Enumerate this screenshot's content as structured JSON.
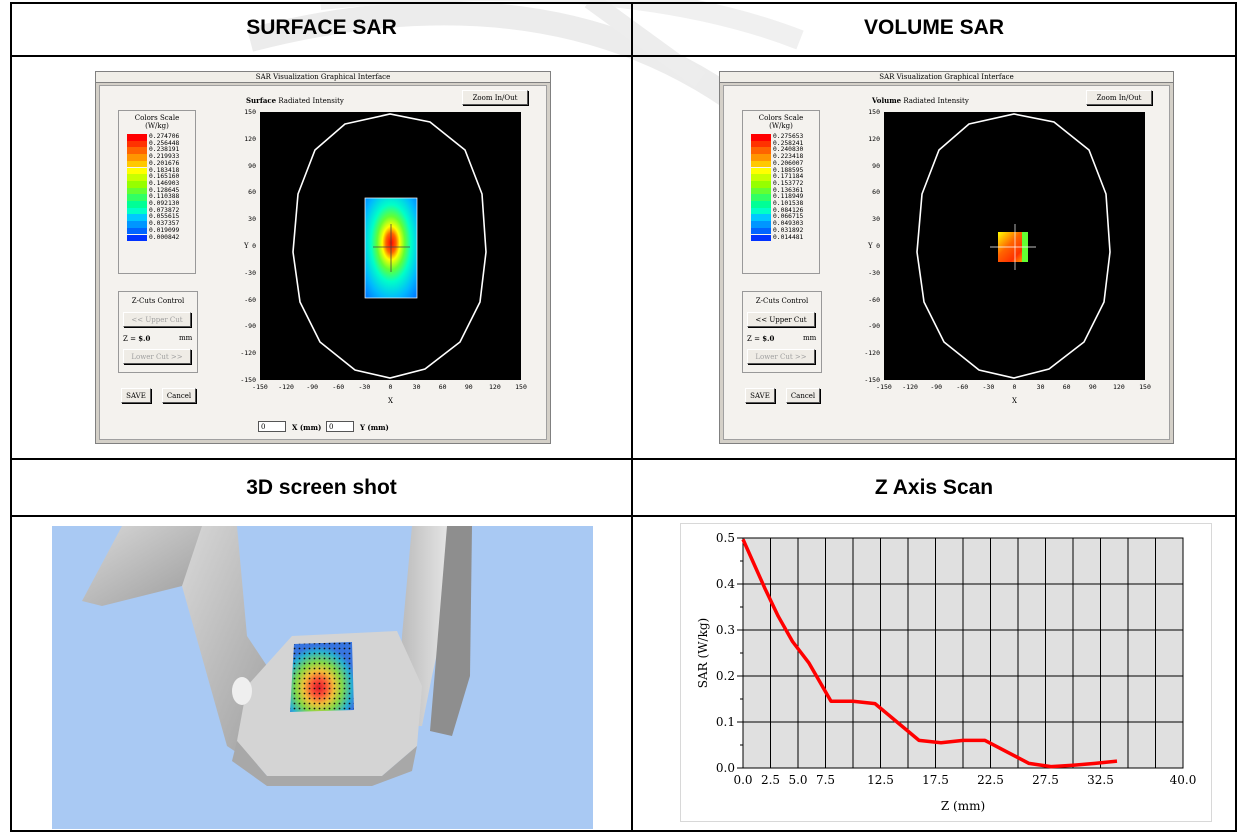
{
  "headers": {
    "surface": "SURFACE SAR",
    "volume": "VOLUME SAR",
    "shot3d": "3D screen shot",
    "zscan": "Z Axis Scan"
  },
  "surface_window": {
    "title": "SAR Visualization Graphical Interface",
    "mode_bold": "Surface",
    "mode_rest": "Radiated Intensity",
    "zoom_label": "Zoom In/Out",
    "scale_title": "Colors Scale",
    "scale_unit": "(W/kg)",
    "scale_values": [
      "0.274706",
      "0.256448",
      "0.238191",
      "0.219933",
      "0.201676",
      "0.183418",
      "0.165160",
      "0.146903",
      "0.128645",
      "0.110388",
      "0.092130",
      "0.073872",
      "0.055615",
      "0.037357",
      "0.019099",
      "0.000842"
    ],
    "zcuts_title": "Z-Cuts Control",
    "upper_cut": "<< Upper Cut",
    "z_label": "Z = ",
    "z_value": "$.0",
    "z_unit": "mm",
    "lower_cut": "Lower Cut >>",
    "save": "SAVE",
    "cancel": "Cancel",
    "x_axis_label": "X",
    "y_axis_label": "Y",
    "x_ticks": [
      "-150",
      "-120",
      "-90",
      "-60",
      "-30",
      "0",
      "30",
      "60",
      "90",
      "120",
      "150"
    ],
    "y_ticks": [
      "150",
      "120",
      "90",
      "60",
      "30",
      "0",
      "-30",
      "-60",
      "-90",
      "-120",
      "-150"
    ],
    "x_input_value": "0",
    "x_input_label": "X (mm)",
    "y_input_value": "0",
    "y_input_label": "Y (mm)"
  },
  "volume_window": {
    "title": "SAR Visualization Graphical Interface",
    "mode_bold": "Volume",
    "mode_rest": "Radiated Intensity",
    "zoom_label": "Zoom In/Out",
    "scale_title": "Colors Scale",
    "scale_unit": "(W/kg)",
    "scale_values": [
      "0.275653",
      "0.258241",
      "0.240830",
      "0.223418",
      "0.206007",
      "0.188595",
      "0.171184",
      "0.153772",
      "0.136361",
      "0.118949",
      "0.101538",
      "0.084126",
      "0.066715",
      "0.049303",
      "0.031892",
      "0.014481"
    ],
    "zcuts_title": "Z-Cuts Control",
    "upper_cut": "<< Upper Cut",
    "z_label": "Z = ",
    "z_value": "$.0",
    "z_unit": "mm",
    "lower_cut": "Lower Cut >>",
    "save": "SAVE",
    "cancel": "Cancel",
    "x_axis_label": "X",
    "y_axis_label": "Y",
    "x_ticks": [
      "-150",
      "-120",
      "-90",
      "-60",
      "-30",
      "0",
      "30",
      "60",
      "90",
      "120",
      "150"
    ],
    "y_ticks": [
      "150",
      "120",
      "90",
      "60",
      "30",
      "0",
      "-30",
      "-60",
      "-90",
      "-120",
      "-150"
    ]
  },
  "scale_colors": [
    "#ff0000",
    "#ff3200",
    "#ff6400",
    "#ff9600",
    "#ffc800",
    "#ffff00",
    "#c8ff00",
    "#96ff00",
    "#64ff32",
    "#32ff64",
    "#00ff96",
    "#00ffc8",
    "#00c8ff",
    "#0096ff",
    "#0064ff",
    "#0032ff"
  ],
  "chart_data": {
    "type": "line",
    "xlabel": "Z  (mm)",
    "ylabel": "SAR  (W/kg)",
    "x_tick_labels": [
      "0.0",
      "2.5",
      "5.0",
      "7.5",
      "12.5",
      "17.5",
      "22.5",
      "27.5",
      "32.5",
      "40.0"
    ],
    "x_tick_values": [
      0,
      2.5,
      5,
      7.5,
      12.5,
      17.5,
      22.5,
      27.5,
      32.5,
      40
    ],
    "y_tick_labels": [
      "0.0",
      "0.1",
      "0.2",
      "0.3",
      "0.4",
      "0.5"
    ],
    "y_tick_values": [
      0,
      0.1,
      0.2,
      0.3,
      0.4,
      0.5
    ],
    "xlim": [
      0,
      40
    ],
    "ylim": [
      0,
      0.5
    ],
    "grid": true,
    "series": [
      {
        "color": "#ff0000",
        "x": [
          0,
          2,
          3.2,
          4.5,
          6,
          8,
          10,
          12,
          14,
          16,
          18,
          20,
          22,
          24,
          26,
          28,
          30,
          32,
          34
        ],
        "y": [
          0.497,
          0.39,
          0.33,
          0.275,
          0.228,
          0.145,
          0.145,
          0.14,
          0.1,
          0.06,
          0.055,
          0.06,
          0.06,
          0.035,
          0.01,
          0.003,
          0.006,
          0.01,
          0.015
        ]
      }
    ]
  }
}
